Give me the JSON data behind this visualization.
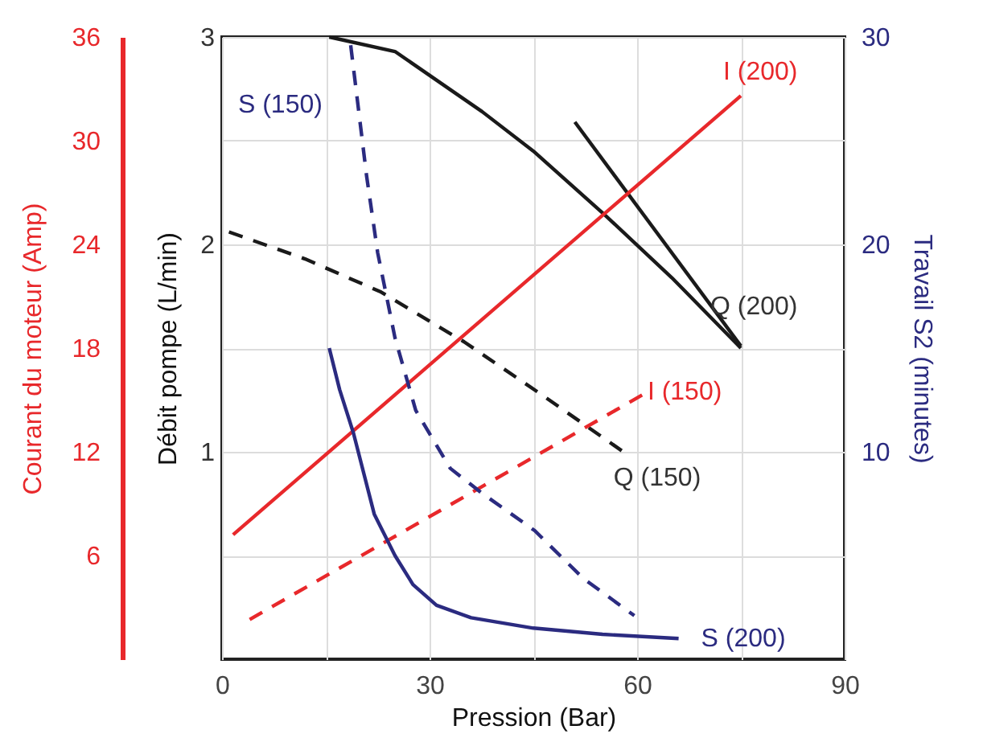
{
  "chart_data": {
    "type": "line",
    "xlabel": "Pression (Bar)",
    "ylabel": "Débit pompe (L/min)",
    "y2label": "Travail S2 (minutes)",
    "y3label": "Courant du moteur (Amp)",
    "xlim": [
      0,
      90
    ],
    "xticks": [
      0,
      {
        "value": 15,
        "label": null
      },
      30,
      {
        "value": 45,
        "label": null
      },
      60,
      {
        "value": 75,
        "label": null
      },
      90
    ],
    "ylim": [
      0,
      3
    ],
    "yticks": [
      {
        "value": 0.5,
        "label": null
      },
      1,
      {
        "value": 1.5,
        "label": null
      },
      2,
      {
        "value": 2.5,
        "label": null
      },
      3
    ],
    "y2lim": [
      0,
      30
    ],
    "y2ticks": [
      10,
      20,
      30
    ],
    "y3lim": [
      0,
      36
    ],
    "y3ticks": [
      6,
      12,
      18,
      24,
      30,
      36
    ],
    "grid": true,
    "series": [
      {
        "name": "Q (200)",
        "color": "#1a1a1a",
        "line_style": "solid",
        "x": [
          15.5,
          25,
          37.6,
          45,
          55.4,
          65,
          75
        ],
        "values": [
          3,
          2.93,
          2.64,
          2.45,
          2.14,
          1.84,
          1.5
        ]
      },
      {
        "color": "#1a1a1a",
        "line_style": "solid",
        "x": [
          51,
          75
        ],
        "values": [
          2.59,
          1.51
        ]
      },
      {
        "name": "Q (150)",
        "color": "#1a1a1a",
        "line_style": "dashed",
        "x": [
          1,
          12,
          23,
          35,
          46,
          58
        ],
        "values": [
          2.06,
          1.93,
          1.77,
          1.53,
          1.28,
          1.0
        ]
      },
      {
        "name": "I (200)",
        "color": "#e8282b",
        "line_style": "solid",
        "axis": "y3",
        "x": [
          1.6,
          75
        ],
        "values": [
          7.2,
          32.6
        ]
      },
      {
        "name": "I (150)",
        "color": "#e8282b",
        "line_style": "dashed",
        "axis": "y3",
        "x": [
          4,
          60.8
        ],
        "values": [
          2.3,
          15.3
        ]
      },
      {
        "name": "S (150)",
        "color": "#2b2b80",
        "line_style": "dashed",
        "axis": "y2",
        "x": [
          18.6,
          20.9,
          22.5,
          25,
          28,
          33,
          37.6,
          45.2,
          52.2,
          59.6
        ],
        "values": [
          29.6,
          23.3,
          19.6,
          15.5,
          12,
          9.2,
          8,
          6.2,
          3.9,
          2.1
        ]
      },
      {
        "name": "S (200)",
        "color": "#2b2b80",
        "line_style": "solid",
        "axis": "y2",
        "x": [
          15.5,
          17,
          19,
          22,
          25,
          27.6,
          31,
          36,
          45,
          55,
          66
        ],
        "values": [
          15,
          13,
          10.9,
          7,
          5,
          3.6,
          2.6,
          2,
          1.5,
          1.2,
          1
        ]
      }
    ]
  }
}
